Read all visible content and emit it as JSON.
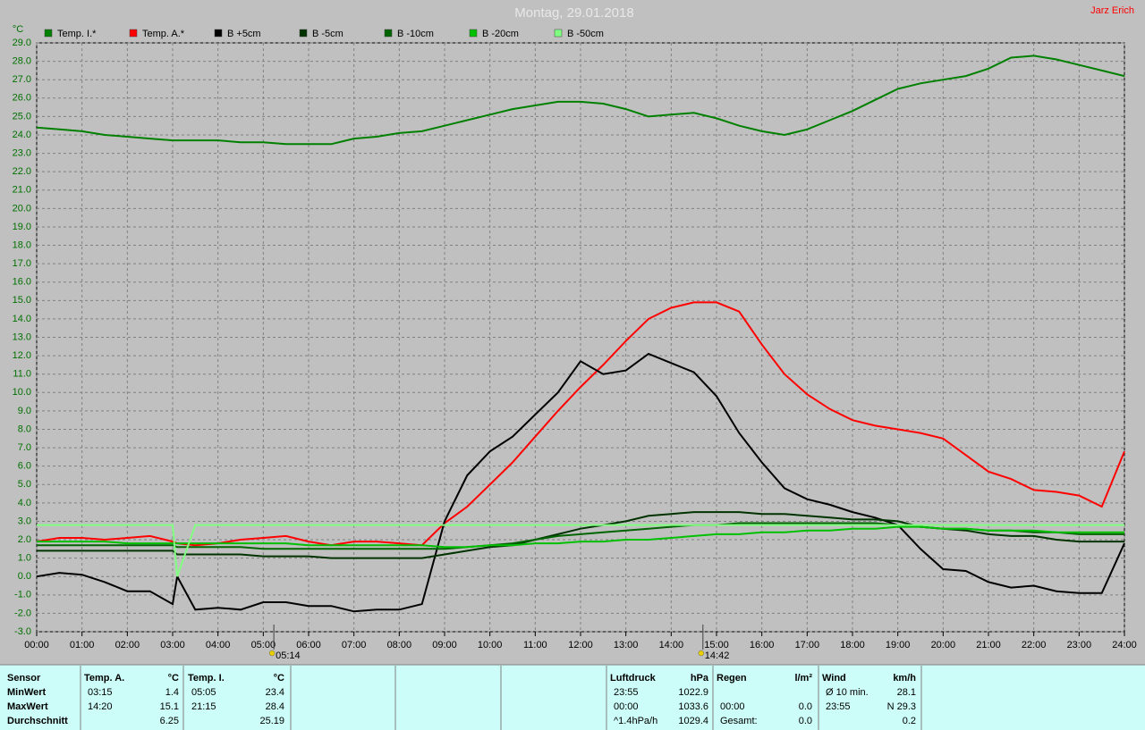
{
  "chart_data": {
    "type": "line",
    "title": "Montag, 29.01.2018",
    "author": "Jarz Erich",
    "y_label": "°C",
    "grid": true,
    "x": [
      0,
      0.5,
      1,
      1.5,
      2,
      2.5,
      3,
      3.1,
      3.5,
      4,
      4.5,
      5,
      5.5,
      6,
      6.5,
      7,
      7.5,
      8,
      8.5,
      9,
      9.5,
      10,
      10.5,
      11,
      11.5,
      12,
      12.5,
      13,
      13.5,
      14,
      14.5,
      15,
      15.5,
      16,
      16.5,
      17,
      17.5,
      18,
      18.5,
      19,
      19.5,
      20,
      20.5,
      21,
      21.5,
      22,
      22.5,
      23,
      23.5,
      24
    ],
    "xlim": [
      0,
      24
    ],
    "xticks": [
      {
        "value": 0,
        "label": "00:00"
      },
      {
        "value": 1,
        "label": "01:00"
      },
      {
        "value": 2,
        "label": "02:00"
      },
      {
        "value": 3,
        "label": "03:00"
      },
      {
        "value": 4,
        "label": "04:00"
      },
      {
        "value": 5,
        "label": "05:00"
      },
      {
        "value": 6,
        "label": "06:00"
      },
      {
        "value": 7,
        "label": "07:00"
      },
      {
        "value": 8,
        "label": "08:00"
      },
      {
        "value": 9,
        "label": "09:00"
      },
      {
        "value": 10,
        "label": "10:00"
      },
      {
        "value": 11,
        "label": "11:00"
      },
      {
        "value": 12,
        "label": "12:00"
      },
      {
        "value": 13,
        "label": "13:00"
      },
      {
        "value": 14,
        "label": "14:00"
      },
      {
        "value": 15,
        "label": "15:00"
      },
      {
        "value": 16,
        "label": "16:00"
      },
      {
        "value": 17,
        "label": "17:00"
      },
      {
        "value": 18,
        "label": "18:00"
      },
      {
        "value": 19,
        "label": "19:00"
      },
      {
        "value": 20,
        "label": "20:00"
      },
      {
        "value": 21,
        "label": "21:00"
      },
      {
        "value": 22,
        "label": "22:00"
      },
      {
        "value": 23,
        "label": "23:00"
      },
      {
        "value": 24,
        "label": "24:00"
      }
    ],
    "ylim": [
      -3,
      29
    ],
    "yticks": [
      {
        "value": -3,
        "label": "-3.0"
      },
      {
        "value": -2,
        "label": "-2.0"
      },
      {
        "value": -1,
        "label": "-1.0"
      },
      {
        "value": 0,
        "label": "0.0"
      },
      {
        "value": 1,
        "label": "1.0"
      },
      {
        "value": 2,
        "label": "2.0"
      },
      {
        "value": 3,
        "label": "3.0"
      },
      {
        "value": 4,
        "label": "4.0"
      },
      {
        "value": 5,
        "label": "5.0"
      },
      {
        "value": 6,
        "label": "6.0"
      },
      {
        "value": 7,
        "label": "7.0"
      },
      {
        "value": 8,
        "label": "8.0"
      },
      {
        "value": 9,
        "label": "9.0"
      },
      {
        "value": 10,
        "label": "10.0"
      },
      {
        "value": 11,
        "label": "11.0"
      },
      {
        "value": 12,
        "label": "12.0"
      },
      {
        "value": 13,
        "label": "13.0"
      },
      {
        "value": 14,
        "label": "14.0"
      },
      {
        "value": 15,
        "label": "15.0"
      },
      {
        "value": 16,
        "label": "16.0"
      },
      {
        "value": 17,
        "label": "17.0"
      },
      {
        "value": 18,
        "label": "18.0"
      },
      {
        "value": 19,
        "label": "19.0"
      },
      {
        "value": 20,
        "label": "20.0"
      },
      {
        "value": 21,
        "label": "21.0"
      },
      {
        "value": 22,
        "label": "22.0"
      },
      {
        "value": 23,
        "label": "23.0"
      },
      {
        "value": 24,
        "label": "24.0"
      },
      {
        "value": 25,
        "label": "25.0"
      },
      {
        "value": 26,
        "label": "26.0"
      },
      {
        "value": 27,
        "label": "27.0"
      },
      {
        "value": 28,
        "label": "28.0"
      },
      {
        "value": 29,
        "label": "29.0"
      }
    ],
    "series": [
      {
        "name": "Temp. I.*",
        "color": "#008000",
        "values": [
          24.4,
          24.3,
          24.2,
          24.0,
          23.9,
          23.8,
          23.7,
          23.7,
          23.7,
          23.7,
          23.6,
          23.6,
          23.5,
          23.5,
          23.5,
          23.8,
          23.9,
          24.1,
          24.2,
          24.5,
          24.8,
          25.1,
          25.4,
          25.6,
          25.8,
          25.8,
          25.7,
          25.4,
          25.0,
          25.1,
          25.2,
          24.9,
          24.5,
          24.2,
          24.0,
          24.3,
          24.8,
          25.3,
          25.9,
          26.5,
          26.8,
          27.0,
          27.2,
          27.6,
          28.2,
          28.3,
          28.1,
          27.8,
          27.5,
          27.2
        ]
      },
      {
        "name": "Temp. A.*",
        "color": "#ff0000",
        "values": [
          1.9,
          2.1,
          2.1,
          2.0,
          2.1,
          2.2,
          1.9,
          1.8,
          1.7,
          1.8,
          2.0,
          2.1,
          2.2,
          1.9,
          1.7,
          1.9,
          1.9,
          1.8,
          1.7,
          2.9,
          3.8,
          5.0,
          6.2,
          7.6,
          9.0,
          10.3,
          11.5,
          12.8,
          14.0,
          14.6,
          14.9,
          14.9,
          14.4,
          12.6,
          11.0,
          9.9,
          9.1,
          8.5,
          8.2,
          8.0,
          7.8,
          7.5,
          6.6,
          5.7,
          5.3,
          4.7,
          4.6,
          4.4,
          3.8,
          6.8
        ]
      },
      {
        "name": "B +5cm",
        "color": "#000000",
        "values": [
          0.0,
          0.2,
          0.1,
          -0.3,
          -0.8,
          -0.8,
          -1.5,
          0.0,
          -1.8,
          -1.7,
          -1.8,
          -1.4,
          -1.4,
          -1.6,
          -1.6,
          -1.9,
          -1.8,
          -1.8,
          -1.5,
          3.0,
          5.5,
          6.8,
          7.6,
          8.8,
          10.0,
          11.7,
          11.0,
          11.2,
          12.1,
          11.6,
          11.1,
          9.8,
          7.8,
          6.2,
          4.8,
          4.2,
          3.9,
          3.5,
          3.2,
          2.8,
          1.5,
          0.4,
          0.3,
          -0.3,
          -0.6,
          -0.5,
          -0.8,
          -0.9,
          -0.9,
          1.8
        ]
      },
      {
        "name": "B -5cm",
        "color": "#003300",
        "values": [
          1.4,
          1.4,
          1.4,
          1.4,
          1.4,
          1.4,
          1.4,
          1.2,
          1.2,
          1.2,
          1.2,
          1.1,
          1.1,
          1.1,
          1.0,
          1.0,
          1.0,
          1.0,
          1.0,
          1.2,
          1.4,
          1.6,
          1.7,
          2.0,
          2.3,
          2.6,
          2.8,
          3.0,
          3.3,
          3.4,
          3.5,
          3.5,
          3.5,
          3.4,
          3.4,
          3.3,
          3.2,
          3.1,
          3.1,
          3.0,
          2.7,
          2.6,
          2.5,
          2.3,
          2.2,
          2.2,
          2.0,
          1.9,
          1.9,
          1.9
        ]
      },
      {
        "name": "B -10cm",
        "color": "#006400",
        "values": [
          1.7,
          1.7,
          1.7,
          1.7,
          1.7,
          1.7,
          1.7,
          1.6,
          1.6,
          1.6,
          1.6,
          1.5,
          1.5,
          1.5,
          1.5,
          1.5,
          1.5,
          1.5,
          1.5,
          1.5,
          1.6,
          1.7,
          1.8,
          2.0,
          2.2,
          2.3,
          2.4,
          2.5,
          2.6,
          2.7,
          2.8,
          2.8,
          2.9,
          2.9,
          2.9,
          2.9,
          2.9,
          2.9,
          2.9,
          2.8,
          2.7,
          2.6,
          2.6,
          2.5,
          2.5,
          2.4,
          2.4,
          2.3,
          2.3,
          2.3
        ]
      },
      {
        "name": "B -20cm",
        "color": "#00c000",
        "values": [
          1.9,
          1.9,
          1.9,
          1.9,
          1.8,
          1.8,
          1.8,
          1.8,
          1.8,
          1.8,
          1.8,
          1.8,
          1.8,
          1.7,
          1.7,
          1.7,
          1.7,
          1.7,
          1.7,
          1.6,
          1.6,
          1.7,
          1.7,
          1.8,
          1.8,
          1.9,
          1.9,
          2.0,
          2.0,
          2.1,
          2.2,
          2.3,
          2.3,
          2.4,
          2.4,
          2.5,
          2.5,
          2.6,
          2.6,
          2.7,
          2.7,
          2.6,
          2.6,
          2.5,
          2.5,
          2.5,
          2.4,
          2.4,
          2.4,
          2.4
        ]
      },
      {
        "name": "B -50cm",
        "color": "#80ff80",
        "values": [
          2.8,
          2.8,
          2.8,
          2.8,
          2.8,
          2.8,
          2.8,
          0.0,
          2.8,
          2.8,
          2.8,
          2.8,
          2.8,
          2.8,
          2.8,
          2.8,
          2.8,
          2.8,
          2.8,
          2.8,
          2.8,
          2.8,
          2.8,
          2.8,
          2.8,
          2.8,
          2.8,
          2.8,
          2.8,
          2.8,
          2.8,
          2.8,
          2.8,
          2.8,
          2.8,
          2.8,
          2.8,
          2.8,
          2.8,
          2.8,
          2.8,
          2.8,
          2.8,
          2.8,
          2.8,
          2.8,
          2.8,
          2.8,
          2.8,
          2.8
        ]
      }
    ],
    "annotations": [
      {
        "x": 5.233,
        "label": "05:14"
      },
      {
        "x": 14.7,
        "label": "14:42"
      }
    ]
  },
  "table": {
    "groups": [
      {
        "header": [
          "Sensor"
        ],
        "rows": [
          [
            "MinWert"
          ],
          [
            "MaxWert"
          ],
          [
            "Durchschnitt"
          ]
        ]
      },
      {
        "header": [
          "Temp. A.",
          "°C"
        ],
        "rows": [
          [
            "03:15",
            "1.4"
          ],
          [
            "14:20",
            "15.1"
          ],
          [
            null,
            "6.25"
          ]
        ]
      },
      {
        "header": [
          "Temp. I.",
          "°C"
        ],
        "rows": [
          [
            "05:05",
            "23.4"
          ],
          [
            "21:15",
            "28.4"
          ],
          [
            null,
            "25.19"
          ]
        ]
      },
      {
        "header": [
          "Luftdruck",
          "hPa"
        ],
        "rows": [
          [
            "23:55",
            "1022.9"
          ],
          [
            "00:00",
            "1033.6"
          ],
          [
            "^1.4hPa/h",
            "1029.4"
          ]
        ]
      },
      {
        "header": [
          "Regen",
          "l/m²"
        ],
        "rows": [
          [
            null,
            null
          ],
          [
            "00:00",
            "0.0"
          ],
          [
            "Gesamt:",
            "0.0"
          ]
        ]
      },
      {
        "header": [
          "Wind",
          "km/h"
        ],
        "rows": [
          [
            "Ø 10 min.",
            "28.1"
          ],
          [
            "23:55",
            "N 29.3"
          ],
          [
            null,
            "0.2"
          ]
        ]
      }
    ]
  }
}
